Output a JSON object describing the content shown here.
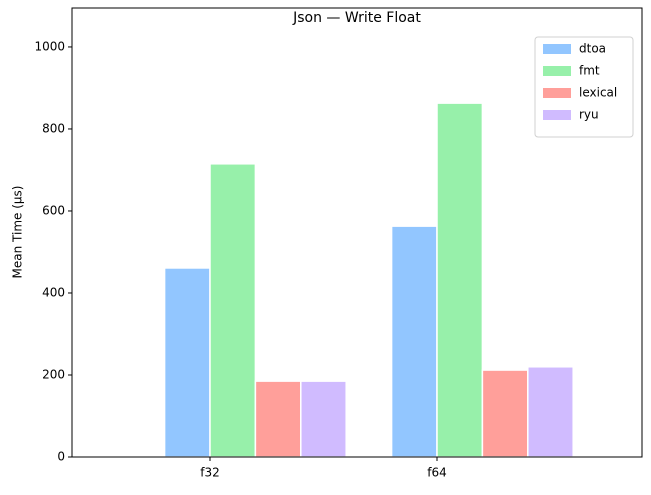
{
  "chart_data": {
    "type": "bar",
    "title": "Json — Write Float",
    "ylabel": "Mean Time (µs)",
    "categories": [
      "f32",
      "f64"
    ],
    "series": [
      {
        "name": "dtoa",
        "color": "#92c6ff",
        "values": [
          461,
          563
        ]
      },
      {
        "name": "fmt",
        "color": "#97f0aa",
        "values": [
          715,
          863
        ]
      },
      {
        "name": "lexical",
        "color": "#ff9f9a",
        "values": [
          185,
          212
        ]
      },
      {
        "name": "ryu",
        "color": "#d0bbff",
        "values": [
          185,
          220
        ]
      }
    ],
    "ylim": [
      0,
      1095
    ],
    "yticks": [
      0,
      200,
      400,
      600,
      800,
      1000
    ],
    "legend": "upper right"
  }
}
